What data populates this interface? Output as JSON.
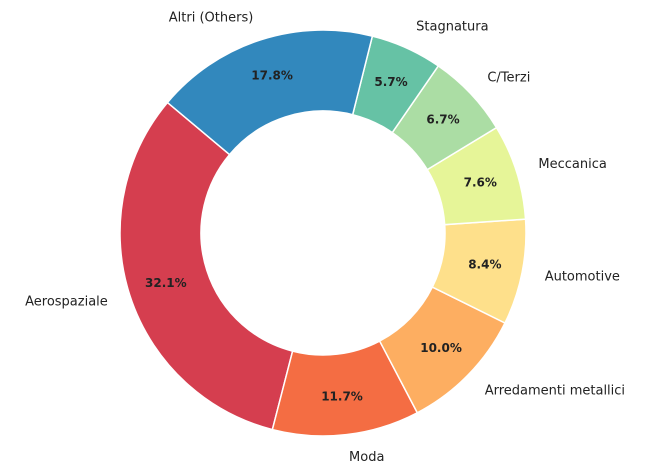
{
  "chart_data": {
    "type": "donut",
    "categories": [
      "Aerospaziale",
      "Moda",
      "Arredamenti metallici",
      "Automotive",
      "Meccanica",
      "C/Terzi",
      "Stagnatura",
      "Altri (Others)"
    ],
    "values": [
      32.1,
      11.7,
      10.0,
      8.4,
      7.6,
      6.7,
      5.7,
      17.8
    ],
    "value_labels": [
      "32.1%",
      "11.7%",
      "10.0%",
      "8.4%",
      "7.6%",
      "6.7%",
      "5.7%",
      "17.8%"
    ],
    "colors": [
      "#d53e4f",
      "#f46d43",
      "#fdae61",
      "#fee08b",
      "#e6f598",
      "#abdda4",
      "#66c2a5",
      "#3288bd"
    ]
  }
}
